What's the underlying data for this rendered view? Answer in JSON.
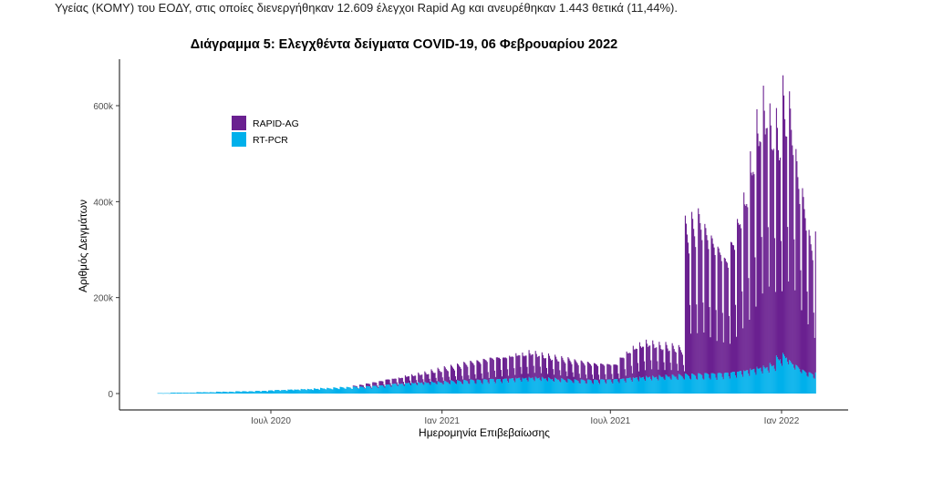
{
  "top_text": "Υγείας (ΚΟΜΥ) του ΕΟΔΥ, στις οποίες διενεργήθηκαν 12.609 έλεγχοι Rapid Ag και ανευρέθηκαν 1.443 θετικά (11,44%).",
  "colors": {
    "rapid": "#6a2090",
    "pcr": "#00b0eb",
    "axis": "#333333",
    "tick_text": "#4d4d4d"
  },
  "chart_data": {
    "type": "bar",
    "stacked": true,
    "title": "Διάγραμμα 5: Ελεγχθέντα δείγματα COVID-19, 06 Φεβρουαρίου 2022",
    "xlabel": "Ημερομηνία Επιβεβαίωσης",
    "ylabel": "Αριθμός Δειγμάτων",
    "ylim": [
      -30000,
      700000
    ],
    "yticks": [
      {
        "value": 0,
        "label": "0"
      },
      {
        "value": 200000,
        "label": "200k"
      },
      {
        "value": 400000,
        "label": "400k"
      },
      {
        "value": 600000,
        "label": "600k"
      }
    ],
    "xticks": [
      {
        "date": "2020-07-01",
        "label": "Ιουλ 2020"
      },
      {
        "date": "2021-01-01",
        "label": "Ιαν 2021"
      },
      {
        "date": "2021-07-01",
        "label": "Ιουλ 2021"
      },
      {
        "date": "2022-01-01",
        "label": "Ιαν 2022"
      }
    ],
    "x_start": "2020-03-01",
    "x_end": "2022-02-06",
    "legend": {
      "position": "top-left",
      "entries": [
        {
          "name": "RAPID-AG",
          "key": "rapid"
        },
        {
          "name": "RT-PCR",
          "key": "pcr"
        }
      ]
    },
    "resolution": "daily bars; weekly peak values (thousands), modulated by weekday factor",
    "weekday_factor": [
      1,
      0.95,
      0.9,
      0.88,
      0.85,
      0.5,
      0.3
    ],
    "series": [
      {
        "name": "RT-PCR",
        "key": "pcr",
        "weekly_peak_k": [
          1,
          1,
          2,
          2,
          2,
          2,
          3,
          3,
          3,
          4,
          4,
          4,
          5,
          5,
          5,
          6,
          6,
          7,
          8,
          8,
          9,
          9,
          10,
          10,
          11,
          12,
          12,
          13,
          14,
          14,
          15,
          15,
          16,
          17,
          18,
          20,
          22,
          22,
          24,
          24,
          25,
          25,
          26,
          26,
          27,
          28,
          28,
          29,
          30,
          30,
          31,
          32,
          32,
          33,
          34,
          35,
          35,
          36,
          36,
          35,
          34,
          33,
          32,
          31,
          30,
          30,
          30,
          30,
          31,
          31,
          32,
          33,
          35,
          36,
          37,
          38,
          38,
          39,
          40,
          40,
          41,
          42,
          42,
          43,
          44,
          44,
          45,
          46,
          48,
          50,
          52,
          55,
          58,
          60,
          65,
          80,
          85,
          70,
          60,
          50,
          45
        ]
      },
      {
        "name": "RAPID-AG",
        "key": "rapid",
        "weekly_peak_k": [
          0,
          0,
          0,
          0,
          0,
          0,
          0,
          0,
          0,
          0,
          0,
          0,
          0,
          0,
          0,
          0,
          0,
          0,
          0,
          0,
          0,
          0,
          0,
          0,
          0,
          0,
          0,
          0,
          0,
          0,
          2,
          4,
          6,
          8,
          10,
          12,
          12,
          14,
          16,
          18,
          20,
          22,
          25,
          28,
          30,
          32,
          35,
          38,
          40,
          42,
          45,
          48,
          50,
          50,
          52,
          55,
          55,
          58,
          55,
          52,
          50,
          48,
          46,
          45,
          42,
          40,
          38,
          36,
          35,
          35,
          34,
          50,
          60,
          70,
          75,
          78,
          75,
          70,
          68,
          65,
          60,
          330,
          340,
          350,
          320,
          300,
          280,
          260,
          300,
          350,
          400,
          480,
          560,
          600,
          550,
          520,
          580,
          560,
          450,
          380,
          300
        ]
      }
    ]
  }
}
